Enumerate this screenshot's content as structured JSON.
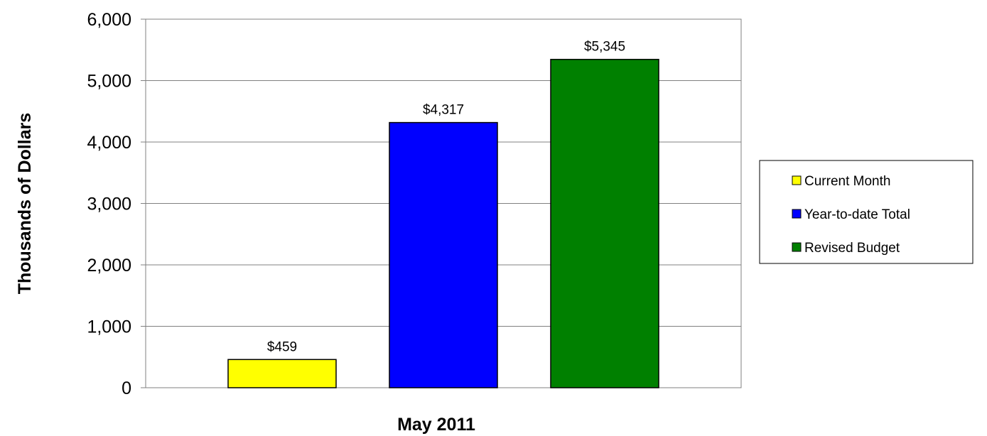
{
  "chart_data": {
    "type": "bar",
    "categories": [
      "May 2011"
    ],
    "series": [
      {
        "name": "Current Month",
        "values": [
          459
        ],
        "label": "$459",
        "color": "#ffff00"
      },
      {
        "name": "Year-to-date Total",
        "values": [
          4317
        ],
        "label": "$4,317",
        "color": "#0000ff"
      },
      {
        "name": "Revised Budget",
        "values": [
          5345
        ],
        "label": "$5,345",
        "color": "#008000"
      }
    ],
    "xlabel": "May 2011",
    "ylabel": "Thousands of Dollars",
    "ylim": [
      0,
      6000
    ],
    "yticks": [
      0,
      1000,
      2000,
      3000,
      4000,
      5000,
      6000
    ],
    "ytick_labels": [
      "0",
      "1,000",
      "2,000",
      "3,000",
      "4,000",
      "5,000",
      "6,000"
    ],
    "grid": true,
    "legend_position": "right"
  }
}
